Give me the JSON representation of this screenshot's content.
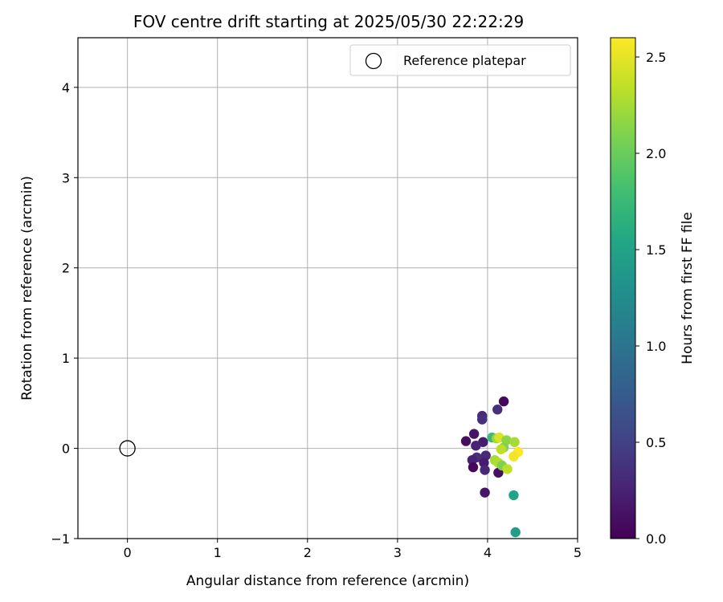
{
  "chart_data": {
    "type": "scatter",
    "title": "FOV centre drift starting at 2025/05/30 22:22:29",
    "xlabel": "Angular distance from reference (arcmin)",
    "ylabel": "Rotation from reference (arcmin)",
    "xlim": [
      -0.55,
      5.0
    ],
    "ylim": [
      -1.0,
      4.55
    ],
    "xticks": [
      0,
      1,
      2,
      3,
      4,
      5
    ],
    "yticks": [
      -1,
      0,
      1,
      2,
      3,
      4
    ],
    "grid": true,
    "legend": {
      "placement": "top-right",
      "label": "Reference platepar"
    },
    "reference_point": {
      "x": 0,
      "y": 0
    },
    "colorbar": {
      "label": "Hours from first FF file",
      "min": 0.0,
      "max": 2.6,
      "ticks": [
        0.0,
        0.5,
        1.0,
        1.5,
        2.0,
        2.5
      ],
      "tick_labels": [
        "0.0",
        "0.5",
        "1.0",
        "1.5",
        "2.0",
        "2.5"
      ],
      "colormap": "viridis"
    },
    "points": [
      {
        "x": 4.18,
        "y": 0.52,
        "c": 0.05
      },
      {
        "x": 4.11,
        "y": 0.43,
        "c": 0.35
      },
      {
        "x": 3.94,
        "y": 0.36,
        "c": 0.3
      },
      {
        "x": 3.94,
        "y": 0.32,
        "c": 0.35
      },
      {
        "x": 3.85,
        "y": 0.16,
        "c": 0.15
      },
      {
        "x": 3.95,
        "y": 0.07,
        "c": 0.2
      },
      {
        "x": 3.76,
        "y": 0.08,
        "c": 0.1
      },
      {
        "x": 3.87,
        "y": 0.03,
        "c": 0.25
      },
      {
        "x": 3.98,
        "y": -0.08,
        "c": 0.3
      },
      {
        "x": 3.88,
        "y": -0.1,
        "c": 0.35
      },
      {
        "x": 3.83,
        "y": -0.13,
        "c": 0.25
      },
      {
        "x": 3.96,
        "y": -0.16,
        "c": 0.2
      },
      {
        "x": 3.84,
        "y": -0.21,
        "c": 0.05
      },
      {
        "x": 3.97,
        "y": -0.24,
        "c": 0.3
      },
      {
        "x": 4.12,
        "y": -0.27,
        "c": 0.1
      },
      {
        "x": 3.97,
        "y": -0.49,
        "c": 0.15
      },
      {
        "x": 4.05,
        "y": 0.12,
        "c": 1.75
      },
      {
        "x": 4.1,
        "y": 0.11,
        "c": 2.2
      },
      {
        "x": 4.13,
        "y": 0.12,
        "c": 2.45
      },
      {
        "x": 4.21,
        "y": 0.09,
        "c": 2.15
      },
      {
        "x": 4.3,
        "y": 0.07,
        "c": 2.25
      },
      {
        "x": 4.18,
        "y": 0.01,
        "c": 2.1
      },
      {
        "x": 4.15,
        "y": -0.01,
        "c": 2.35
      },
      {
        "x": 4.34,
        "y": -0.04,
        "c": 2.6
      },
      {
        "x": 4.29,
        "y": -0.09,
        "c": 2.55
      },
      {
        "x": 4.08,
        "y": -0.13,
        "c": 2.25
      },
      {
        "x": 4.12,
        "y": -0.16,
        "c": 2.3
      },
      {
        "x": 4.16,
        "y": -0.19,
        "c": 2.1
      },
      {
        "x": 4.22,
        "y": -0.23,
        "c": 2.35
      },
      {
        "x": 4.29,
        "y": -0.52,
        "c": 1.5
      },
      {
        "x": 4.31,
        "y": -0.93,
        "c": 1.45
      }
    ]
  }
}
